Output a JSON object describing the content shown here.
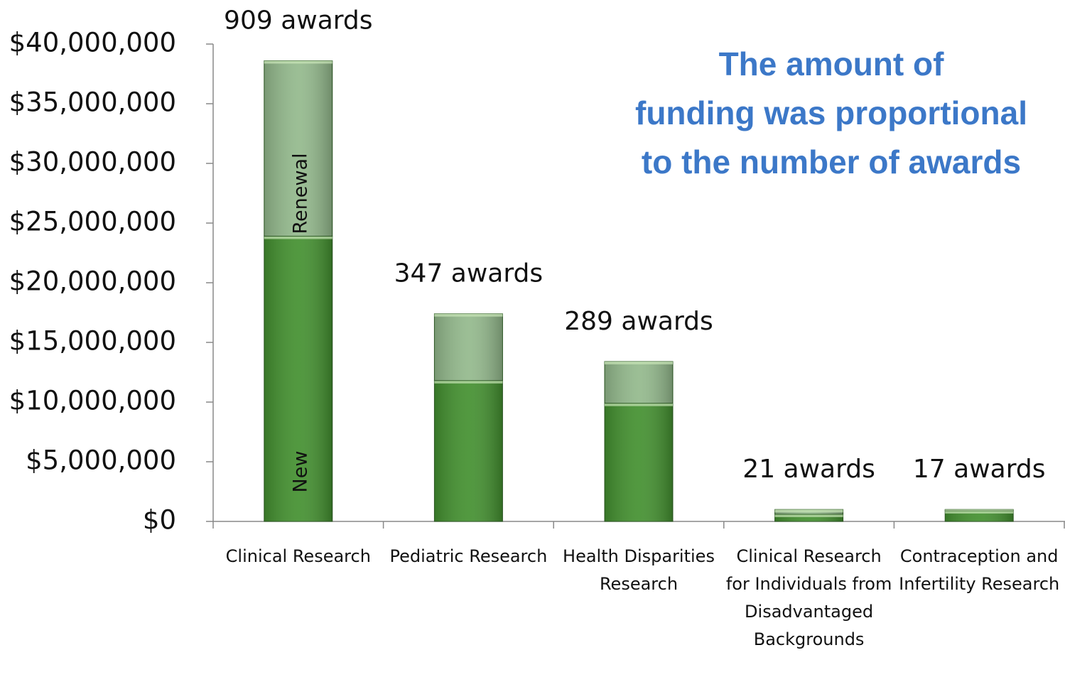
{
  "chart_data": {
    "type": "stacked_bar",
    "title": [
      "The amount of",
      "funding was proportional",
      "to the number of awards"
    ],
    "categories": [
      "Clinical Research",
      "Pediatric Research",
      "Health Disparities Research",
      "Clinical Research for Individuals from Disadvantaged Backgrounds",
      "Contraception and Infertility Research"
    ],
    "series": [
      {
        "name": "New",
        "color": "#43902f",
        "values": [
          23900000,
          11800000,
          9900000,
          600000,
          900000
        ]
      },
      {
        "name": "Renewal",
        "color": "#93b98c",
        "values": [
          14700000,
          5600000,
          3500000,
          400000,
          100000
        ]
      }
    ],
    "annotations": [
      "909 awards",
      "347 awards",
      "289 awards",
      "21 awards",
      "17 awards"
    ],
    "ylim": [
      0,
      40000000
    ],
    "yticks": [
      {
        "value": 0,
        "label": "$0"
      },
      {
        "value": 5000000,
        "label": "$5,000,000"
      },
      {
        "value": 10000000,
        "label": "$10,000,000"
      },
      {
        "value": 15000000,
        "label": "$15,000,000"
      },
      {
        "value": 20000000,
        "label": "$20,000,000"
      },
      {
        "value": 25000000,
        "label": "$25,000,000"
      },
      {
        "value": 30000000,
        "label": "$30,000,000"
      },
      {
        "value": 35000000,
        "label": "$35,000,000"
      },
      {
        "value": 40000000,
        "label": "$40,000,000"
      }
    ],
    "grid": false
  }
}
